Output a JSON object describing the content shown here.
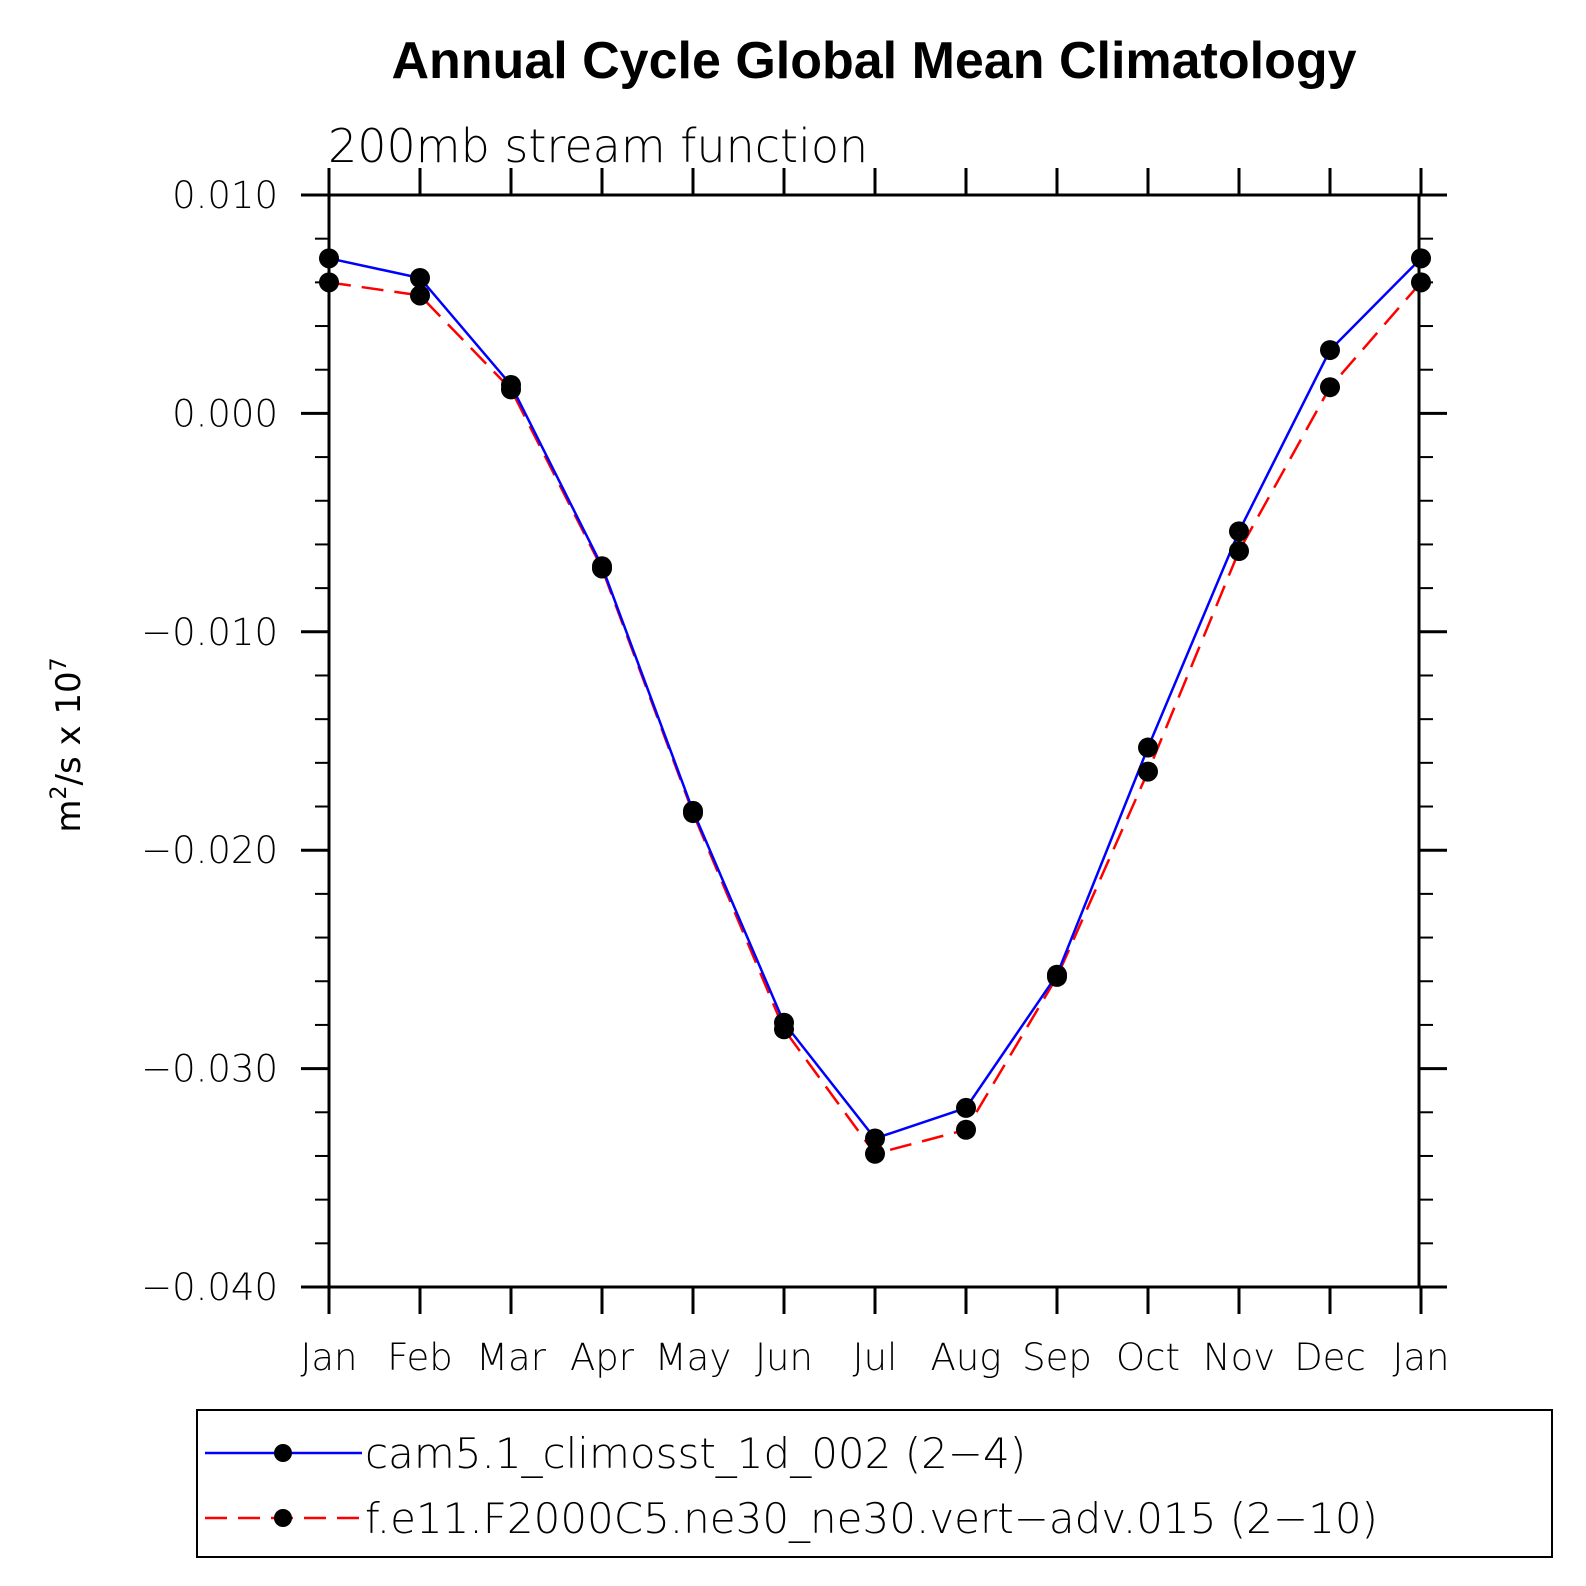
{
  "chart_data": {
    "type": "line",
    "title": "Annual Cycle Global Mean Climatology",
    "subtitle": "200mb stream function",
    "ylabel_base": "m",
    "ylabel_sup1": "2",
    "ylabel_mid": "/s x 10",
    "ylabel_sup2": "7",
    "categories": [
      "Jan",
      "Feb",
      "Mar",
      "Apr",
      "May",
      "Jun",
      "Jul",
      "Aug",
      "Sep",
      "Oct",
      "Nov",
      "Dec",
      "Jan"
    ],
    "ylim": [
      -0.04,
      0.01
    ],
    "yticks": [
      0.01,
      0.0,
      -0.01,
      -0.02,
      -0.03,
      -0.04
    ],
    "ytick_labels": [
      "0.010",
      "0.000",
      "−0.010",
      "−0.020",
      "−0.030",
      "−0.040"
    ],
    "grid": false,
    "legend_position": "bottom",
    "series": [
      {
        "name": "cam5.1_climosst_1d_002 (2−4)",
        "color": "#0000ff",
        "dash": "solid",
        "values": [
          0.0071,
          0.0062,
          0.0013,
          -0.007,
          -0.0182,
          -0.0279,
          -0.0332,
          -0.0318,
          -0.0257,
          -0.0153,
          -0.0054,
          0.0029,
          0.0071
        ]
      },
      {
        "name": "f.e11.F2000C5.ne30_ne30.vert−adv.015 (2−10)",
        "color": "#ff0000",
        "dash": "dashed",
        "values": [
          0.006,
          0.0054,
          0.0011,
          -0.0071,
          -0.0183,
          -0.0282,
          -0.0339,
          -0.0328,
          -0.0258,
          -0.0164,
          -0.0063,
          0.0012,
          0.006
        ]
      }
    ]
  }
}
